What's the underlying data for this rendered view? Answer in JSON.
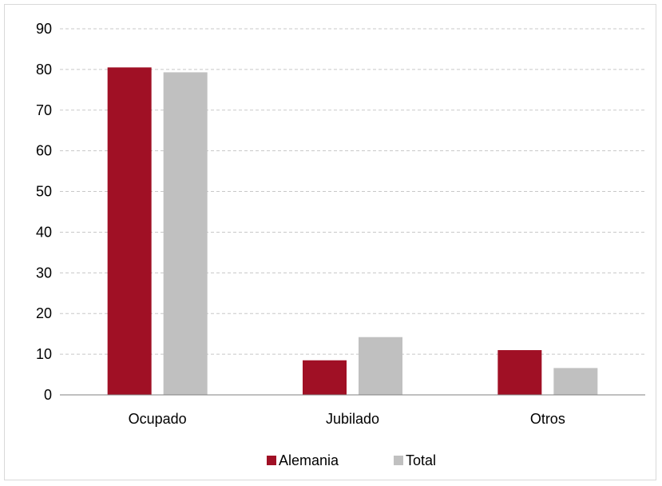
{
  "chart_data": {
    "type": "bar",
    "categories": [
      "Ocupado",
      "Jubilado",
      "Otros"
    ],
    "series": [
      {
        "name": "Alemania",
        "color": "#a01025",
        "values": [
          80.5,
          8.5,
          11.0
        ]
      },
      {
        "name": "Total",
        "color": "#c0c0c0",
        "values": [
          79.3,
          14.2,
          6.6
        ]
      }
    ],
    "ylim": [
      0,
      90
    ],
    "yticks": [
      0,
      10,
      20,
      30,
      40,
      50,
      60,
      70,
      80,
      90
    ],
    "grid": true,
    "legend_position": "bottom"
  }
}
